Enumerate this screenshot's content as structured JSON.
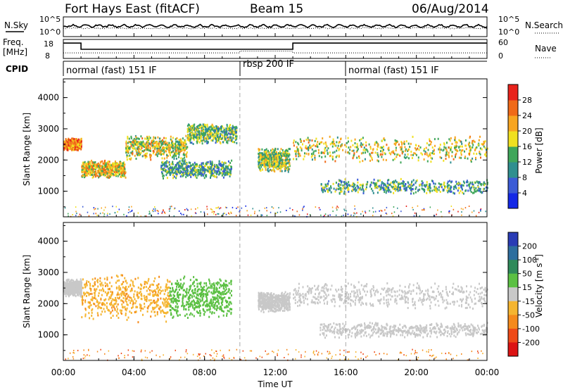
{
  "header": {
    "station": "Fort Hays East (fitACF)",
    "beam": "Beam 15",
    "date": "06/Aug/2014"
  },
  "noise_panel": {
    "left_label": "N.Sky",
    "right_label": "N.Search",
    "left_ticks": [
      "10^5",
      "10^0"
    ],
    "right_ticks": [
      "10^5",
      "10^0"
    ]
  },
  "freq_panel": {
    "left_label_1": "Freq.",
    "left_label_2": "[MHz]",
    "right_label": "Nave",
    "left_ticks": [
      "18",
      "8"
    ],
    "right_ticks": [
      "60",
      "0"
    ]
  },
  "cpid": {
    "label": "CPID",
    "modes": [
      {
        "name": "normal (fast) 151 IF",
        "start_hour": 0
      },
      {
        "name": "rbsp 200 IF",
        "start_hour": 10
      },
      {
        "name": "normal (fast) 151 IF",
        "start_hour": 16
      }
    ]
  },
  "axes": {
    "y_label": "Slant Range [km]",
    "x_label": "Time UT",
    "x_ticks": [
      "00:00",
      "04:00",
      "08:00",
      "12:00",
      "16:00",
      "20:00",
      "00:00"
    ],
    "y_ticks": [
      "1000",
      "2000",
      "3000",
      "4000"
    ]
  },
  "colorbars": {
    "power": {
      "label": "Power [dB]",
      "ticks": [
        "4",
        "8",
        "12",
        "16",
        "20",
        "24",
        "28"
      ],
      "colors": [
        "#1428e6",
        "#3b5bd6",
        "#2f8f8f",
        "#3fa65a",
        "#f0e020",
        "#f7a521",
        "#f06a18",
        "#e8231c"
      ]
    },
    "velocity": {
      "label_main": "Velocity [m s",
      "label_sup": "-1",
      "label_end": "]",
      "ticks": [
        "200",
        "100",
        "50",
        "15",
        "-15",
        "-50",
        "-100",
        "-200"
      ],
      "colors": [
        "#2a3cb5",
        "#2e6e9e",
        "#2f8a5a",
        "#5bc043",
        "#c8c8c8",
        "#f5b530",
        "#f58a1c",
        "#ee4a18",
        "#dc1414"
      ]
    }
  },
  "chart_data": [
    {
      "type": "heatmap",
      "title": "Power",
      "xlabel": "Time UT",
      "ylabel": "Slant Range [km]",
      "xlim_hours": [
        0,
        24
      ],
      "ylim_km": [
        180,
        4600
      ],
      "colorbar": "Power [dB]",
      "echo_bands": [
        {
          "t": [
            0.0,
            1.0
          ],
          "range_km": [
            2300,
            2700
          ],
          "power_db": 24
        },
        {
          "t": [
            1.0,
            3.5
          ],
          "range_km": [
            1400,
            2000
          ],
          "power_db": 20
        },
        {
          "t": [
            3.5,
            7.0
          ],
          "range_km": [
            2000,
            2800
          ],
          "power_db": 18
        },
        {
          "t": [
            5.5,
            9.5
          ],
          "range_km": [
            1400,
            2000
          ],
          "power_db": 12
        },
        {
          "t": [
            7.0,
            9.8
          ],
          "range_km": [
            2500,
            3200
          ],
          "power_db": 14
        },
        {
          "t": [
            11.0,
            12.8
          ],
          "range_km": [
            1600,
            2400
          ],
          "power_db": 16
        },
        {
          "t": [
            13.0,
            24.0
          ],
          "range_km": [
            1900,
            2800
          ],
          "power_db": 18
        },
        {
          "t": [
            14.5,
            24.0
          ],
          "range_km": [
            900,
            1400
          ],
          "power_db": 12
        }
      ]
    },
    {
      "type": "heatmap",
      "title": "Velocity",
      "xlabel": "Time UT",
      "ylabel": "Slant Range [km]",
      "xlim_hours": [
        0,
        24
      ],
      "ylim_km": [
        180,
        4600
      ],
      "colorbar": "Velocity [m s-1]",
      "echo_bands": [
        {
          "t": [
            0.0,
            1.0
          ],
          "range_km": [
            2200,
            2800
          ],
          "velocity": 0
        },
        {
          "t": [
            1.0,
            6.0
          ],
          "range_km": [
            1400,
            3000
          ],
          "velocity": -40
        },
        {
          "t": [
            6.0,
            9.5
          ],
          "range_km": [
            1500,
            2900
          ],
          "velocity": 30
        },
        {
          "t": [
            11.0,
            12.8
          ],
          "range_km": [
            1700,
            2400
          ],
          "velocity": 0
        },
        {
          "t": [
            13.0,
            24.0
          ],
          "range_km": [
            1800,
            2700
          ],
          "velocity": 0
        },
        {
          "t": [
            14.5,
            24.0
          ],
          "range_km": [
            900,
            1400
          ],
          "velocity": 0
        }
      ]
    },
    {
      "type": "line",
      "title": "Frequency",
      "xlabel": "Time UT",
      "ylabel": "Freq. [MHz]",
      "series": [
        {
          "name": "Freq.",
          "x": [
            0,
            1,
            1,
            13,
            13,
            24
          ],
          "y": [
            17,
            17,
            13,
            13,
            17,
            17
          ]
        },
        {
          "name": "Nave",
          "x": [
            0,
            10,
            10,
            13,
            13,
            24
          ],
          "y": [
            16,
            16,
            23,
            23,
            16,
            16
          ]
        }
      ]
    }
  ]
}
